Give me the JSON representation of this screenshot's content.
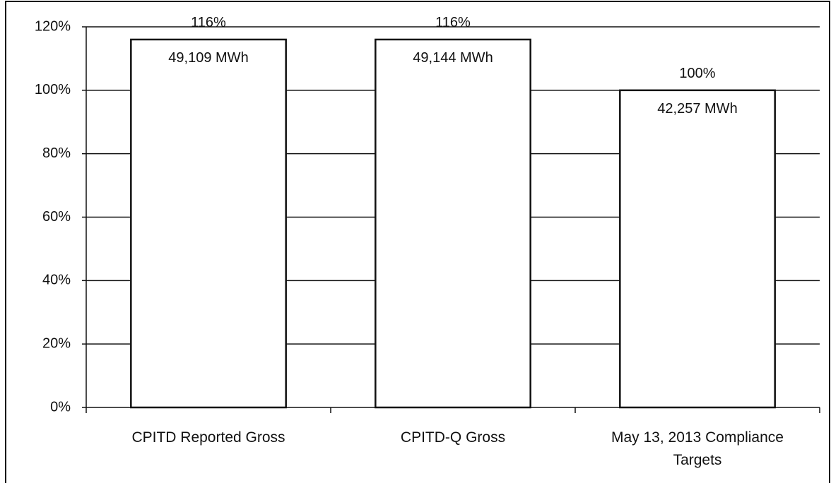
{
  "chart_data": {
    "type": "bar",
    "categories": [
      "CPITD Reported Gross",
      "CPITD-Q Gross",
      "May 13, 2013 Compliance Targets"
    ],
    "values": [
      116,
      116,
      100
    ],
    "value_labels": [
      "116%",
      "116%",
      "100%"
    ],
    "mwh_labels": [
      "49,109 MWh",
      "49,144 MWh",
      "42,257 MWh"
    ],
    "color": "#ffffff",
    "ylim": [
      0,
      120
    ],
    "yticks": [
      {
        "value": 0,
        "label": "0%"
      },
      {
        "value": 20,
        "label": "20%"
      },
      {
        "value": 40,
        "label": "40%"
      },
      {
        "value": 60,
        "label": "60%"
      },
      {
        "value": 80,
        "label": "80%"
      },
      {
        "value": 100,
        "label": "100%"
      },
      {
        "value": 120,
        "label": "120%"
      }
    ],
    "grid": true
  }
}
